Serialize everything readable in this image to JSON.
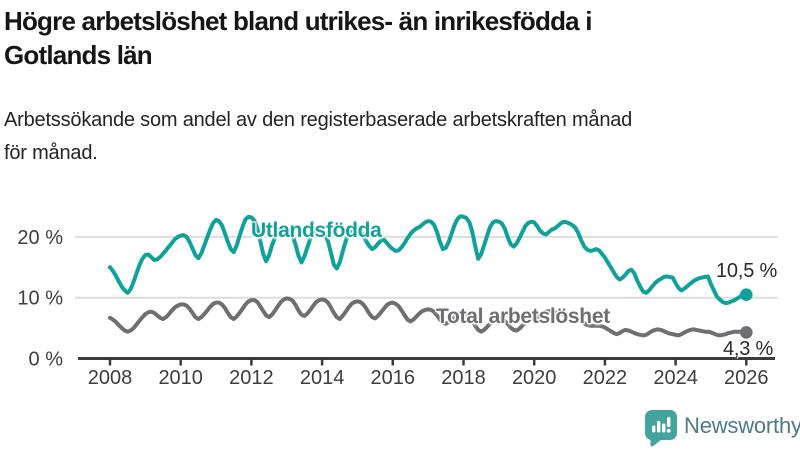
{
  "header": {
    "title_line1": "Högre arbetslöshet bland utrikes- än inrikesfödda i",
    "title_line2": "Gotlands län",
    "subtitle_line1": "Arbetssökande som andel av den registerbaserade arbetskraften månad",
    "subtitle_line2": "för månad."
  },
  "chart_data": {
    "type": "line",
    "title": "Högre arbetslöshet bland utrikes- än inrikesfödda i Gotlands län",
    "subtitle": "Arbetssökande som andel av den registerbaserade arbetskraften månad för månad.",
    "unit": "%",
    "grid": "horizontal",
    "legend_position": "inline-labels",
    "x_start_year": 2008,
    "points_per_year": 12,
    "x_end_year": 2026,
    "x_ticks": [
      2008,
      2010,
      2012,
      2014,
      2016,
      2018,
      2020,
      2022,
      2024,
      2026
    ],
    "y_ticks": [
      {
        "value": 0,
        "label": "0 %"
      },
      {
        "value": 10,
        "label": "10 %"
      },
      {
        "value": 20,
        "label": "20 %"
      }
    ],
    "ylim": [
      0,
      26
    ],
    "series": [
      {
        "name": "Utlandsfödda",
        "color": "#10a29a",
        "end_label": "10,5 %",
        "end_value": 10.5,
        "values": [
          15.0,
          14.4,
          13.6,
          12.7,
          11.8,
          11.2,
          10.8,
          11.4,
          12.6,
          14.0,
          15.4,
          16.4,
          17.0,
          17.1,
          16.7,
          16.2,
          16.3,
          16.7,
          17.2,
          17.8,
          18.4,
          19.0,
          19.6,
          20.0,
          20.2,
          20.3,
          20.0,
          19.2,
          18.1,
          17.0,
          16.5,
          17.3,
          18.6,
          19.9,
          21.2,
          22.3,
          22.8,
          22.6,
          21.9,
          20.6,
          19.2,
          18.0,
          17.5,
          18.6,
          20.2,
          21.7,
          22.9,
          23.3,
          23.2,
          22.7,
          21.4,
          19.4,
          17.2,
          16.0,
          17.0,
          18.6,
          19.9,
          20.8,
          21.4,
          21.5,
          21.4,
          21.0,
          20.2,
          18.7,
          16.9,
          15.8,
          16.8,
          18.3,
          19.7,
          20.7,
          21.1,
          21.0,
          20.8,
          20.3,
          19.3,
          17.4,
          15.4,
          14.8,
          15.8,
          17.6,
          19.3,
          20.6,
          21.2,
          21.3,
          21.4,
          21.0,
          20.2,
          19.3,
          18.5,
          18.0,
          18.3,
          18.9,
          19.4,
          19.5,
          19.0,
          18.4,
          18.0,
          17.7,
          17.8,
          18.3,
          19.0,
          19.8,
          20.5,
          21.0,
          21.4,
          21.6,
          22.0,
          22.4,
          22.6,
          22.5,
          22.0,
          20.8,
          19.2,
          18.0,
          18.2,
          19.2,
          20.6,
          22.0,
          23.0,
          23.4,
          23.3,
          23.1,
          22.4,
          20.8,
          18.4,
          16.4,
          17.2,
          18.6,
          20.2,
          21.6,
          22.4,
          22.6,
          22.5,
          22.2,
          21.4,
          20.0,
          18.8,
          18.4,
          18.9,
          19.8,
          20.8,
          21.8,
          22.3,
          22.5,
          22.4,
          21.8,
          21.0,
          20.6,
          20.4,
          20.8,
          21.2,
          21.4,
          21.8,
          22.2,
          22.5,
          22.4,
          22.2,
          21.9,
          21.5,
          20.6,
          19.4,
          18.4,
          17.9,
          17.7,
          17.8,
          18.0,
          17.8,
          17.2,
          16.6,
          15.8,
          15.0,
          14.2,
          13.4,
          13.0,
          13.3,
          13.8,
          14.4,
          14.6,
          14.0,
          12.8,
          11.8,
          11.0,
          10.8,
          11.2,
          11.8,
          12.4,
          12.8,
          13.1,
          13.4,
          13.5,
          13.4,
          13.3,
          12.4,
          11.6,
          11.2,
          11.5,
          11.9,
          12.3,
          12.7,
          13.0,
          13.2,
          13.3,
          13.4,
          13.5,
          12.2,
          11.2,
          10.2,
          9.7,
          9.3,
          9.1,
          9.2,
          9.4,
          9.6,
          9.9,
          10.2,
          10.4,
          10.5
        ]
      },
      {
        "name": "Total arbetslöshet",
        "color": "#6f6e72",
        "end_label": "4,3 %",
        "end_value": 4.3,
        "values": [
          6.7,
          6.4,
          6.0,
          5.5,
          5.0,
          4.6,
          4.4,
          4.6,
          5.0,
          5.6,
          6.2,
          6.8,
          7.3,
          7.6,
          7.7,
          7.5,
          7.1,
          6.7,
          6.5,
          6.8,
          7.3,
          7.9,
          8.4,
          8.7,
          8.9,
          8.9,
          8.7,
          8.2,
          7.5,
          6.8,
          6.5,
          6.8,
          7.3,
          7.9,
          8.5,
          9.0,
          9.2,
          9.2,
          8.9,
          8.3,
          7.5,
          6.8,
          6.5,
          6.9,
          7.5,
          8.2,
          8.9,
          9.4,
          9.6,
          9.6,
          9.3,
          8.6,
          7.8,
          7.1,
          6.8,
          7.2,
          7.9,
          8.6,
          9.3,
          9.7,
          9.9,
          9.8,
          9.5,
          8.8,
          7.9,
          7.2,
          7.0,
          7.4,
          8.0,
          8.7,
          9.3,
          9.6,
          9.7,
          9.6,
          9.2,
          8.4,
          7.5,
          6.8,
          6.5,
          7.0,
          7.7,
          8.4,
          9.0,
          9.3,
          9.4,
          9.3,
          8.9,
          8.2,
          7.4,
          6.8,
          6.6,
          7.0,
          7.6,
          8.2,
          8.8,
          9.1,
          9.2,
          9.0,
          8.6,
          7.9,
          7.1,
          6.4,
          6.1,
          6.4,
          6.9,
          7.4,
          7.8,
          8.0,
          8.1,
          8.0,
          7.7,
          7.1,
          6.4,
          5.9,
          5.7,
          6.0,
          6.5,
          6.9,
          7.3,
          7.5,
          7.5,
          7.3,
          6.9,
          6.2,
          5.4,
          4.7,
          4.4,
          4.7,
          5.2,
          5.7,
          6.2,
          6.5,
          6.6,
          6.5,
          6.2,
          5.7,
          5.1,
          4.7,
          4.6,
          4.9,
          5.4,
          5.9,
          6.3,
          6.6,
          6.8,
          6.8,
          7.0,
          7.4,
          7.7,
          7.8,
          7.7,
          7.6,
          7.5,
          7.3,
          7.2,
          7.2,
          7.2,
          7.1,
          6.9,
          6.6,
          6.2,
          5.8,
          5.5,
          5.4,
          5.4,
          5.4,
          5.4,
          5.3,
          5.1,
          4.8,
          4.5,
          4.2,
          4.0,
          4.2,
          4.5,
          4.7,
          4.6,
          4.4,
          4.2,
          4.0,
          3.9,
          3.8,
          3.9,
          4.2,
          4.5,
          4.7,
          4.8,
          4.7,
          4.5,
          4.3,
          4.1,
          4.0,
          3.9,
          3.8,
          4.0,
          4.3,
          4.5,
          4.7,
          4.8,
          4.7,
          4.6,
          4.5,
          4.4,
          4.4,
          4.3,
          4.1,
          3.9,
          3.8,
          3.9,
          4.0,
          4.2,
          4.3,
          4.4,
          4.4,
          4.4,
          4.4,
          4.3
        ]
      }
    ]
  },
  "footer": {
    "brand": "Newsworthy"
  },
  "colors": {
    "accent_teal": "#10a29a",
    "series_gray": "#6f6e72",
    "gridline": "#dddddd",
    "axis": "#3b3b3b",
    "tick_text": "#3d3d3d",
    "logo_teal": "#43a39d",
    "logo_text": "#4d7a88"
  }
}
